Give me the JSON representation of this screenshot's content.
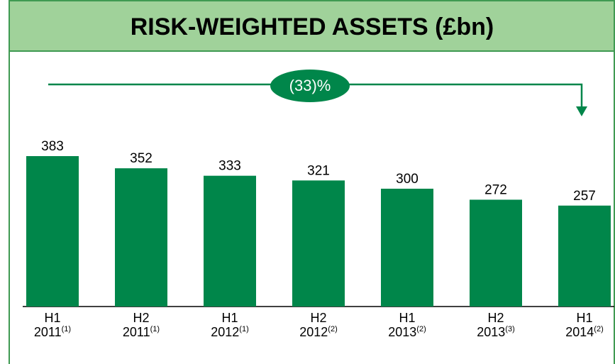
{
  "chart_data": {
    "type": "bar",
    "title": "RISK-WEIGHTED ASSETS (£bn)",
    "annotation": "(33)%",
    "categories": [
      [
        "H1",
        "2011",
        "(1)"
      ],
      [
        "H2",
        "2011",
        "(1)"
      ],
      [
        "H1",
        "2012",
        "(1)"
      ],
      [
        "H2",
        "2012",
        "(2)"
      ],
      [
        "H1",
        "2013",
        "(2)"
      ],
      [
        "H2",
        "2013",
        "(3)"
      ],
      [
        "H1",
        "2014",
        "(2)"
      ]
    ],
    "values": [
      383,
      352,
      333,
      321,
      300,
      272,
      257
    ],
    "color": "#00864a"
  }
}
